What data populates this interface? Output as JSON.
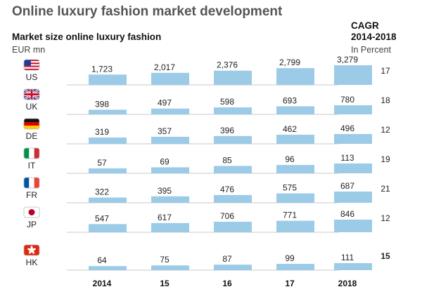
{
  "header": {
    "title": "Online luxury fashion market development",
    "subtitle": "Market size online luxury fashion",
    "unit": "EUR mn",
    "cagr_title_line1": "CAGR",
    "cagr_title_line2": "2014-2018",
    "cagr_unit": "In Percent"
  },
  "colors": {
    "bar": "#9ccbe8",
    "rule": "#c8c8c8"
  },
  "chart_data": {
    "type": "bar",
    "title": "Online luxury fashion market development",
    "ylabel": "EUR mn",
    "categories": [
      "2014",
      "15",
      "16",
      "17",
      "2018"
    ],
    "rows": [
      {
        "code": "US",
        "flag": "us-flag-icon",
        "values": [
          1723,
          2017,
          2376,
          2799,
          3279
        ],
        "labels": [
          "1,723",
          "2,017",
          "2,376",
          "2,799",
          "3,279"
        ],
        "cagr": "17"
      },
      {
        "code": "UK",
        "flag": "uk-flag-icon",
        "values": [
          398,
          497,
          598,
          693,
          780
        ],
        "labels": [
          "398",
          "497",
          "598",
          "693",
          "780"
        ],
        "cagr": "18"
      },
      {
        "code": "DE",
        "flag": "de-flag-icon",
        "values": [
          319,
          357,
          396,
          462,
          496
        ],
        "labels": [
          "319",
          "357",
          "396",
          "462",
          "496"
        ],
        "cagr": "12"
      },
      {
        "code": "IT",
        "flag": "it-flag-icon",
        "values": [
          57,
          69,
          85,
          96,
          113
        ],
        "labels": [
          "57",
          "69",
          "85",
          "96",
          "113"
        ],
        "cagr": "19"
      },
      {
        "code": "FR",
        "flag": "fr-flag-icon",
        "values": [
          322,
          395,
          476,
          575,
          687
        ],
        "labels": [
          "322",
          "395",
          "476",
          "575",
          "687"
        ],
        "cagr": "21"
      },
      {
        "code": "JP",
        "flag": "jp-flag-icon",
        "values": [
          547,
          617,
          706,
          771,
          846
        ],
        "labels": [
          "547",
          "617",
          "706",
          "771",
          "846"
        ],
        "cagr": "12"
      },
      {
        "code": "HK",
        "flag": "hk-flag-icon",
        "values": [
          64,
          75,
          87,
          99,
          111
        ],
        "labels": [
          "64",
          "75",
          "87",
          "99",
          "111"
        ],
        "cagr": "15"
      }
    ]
  }
}
